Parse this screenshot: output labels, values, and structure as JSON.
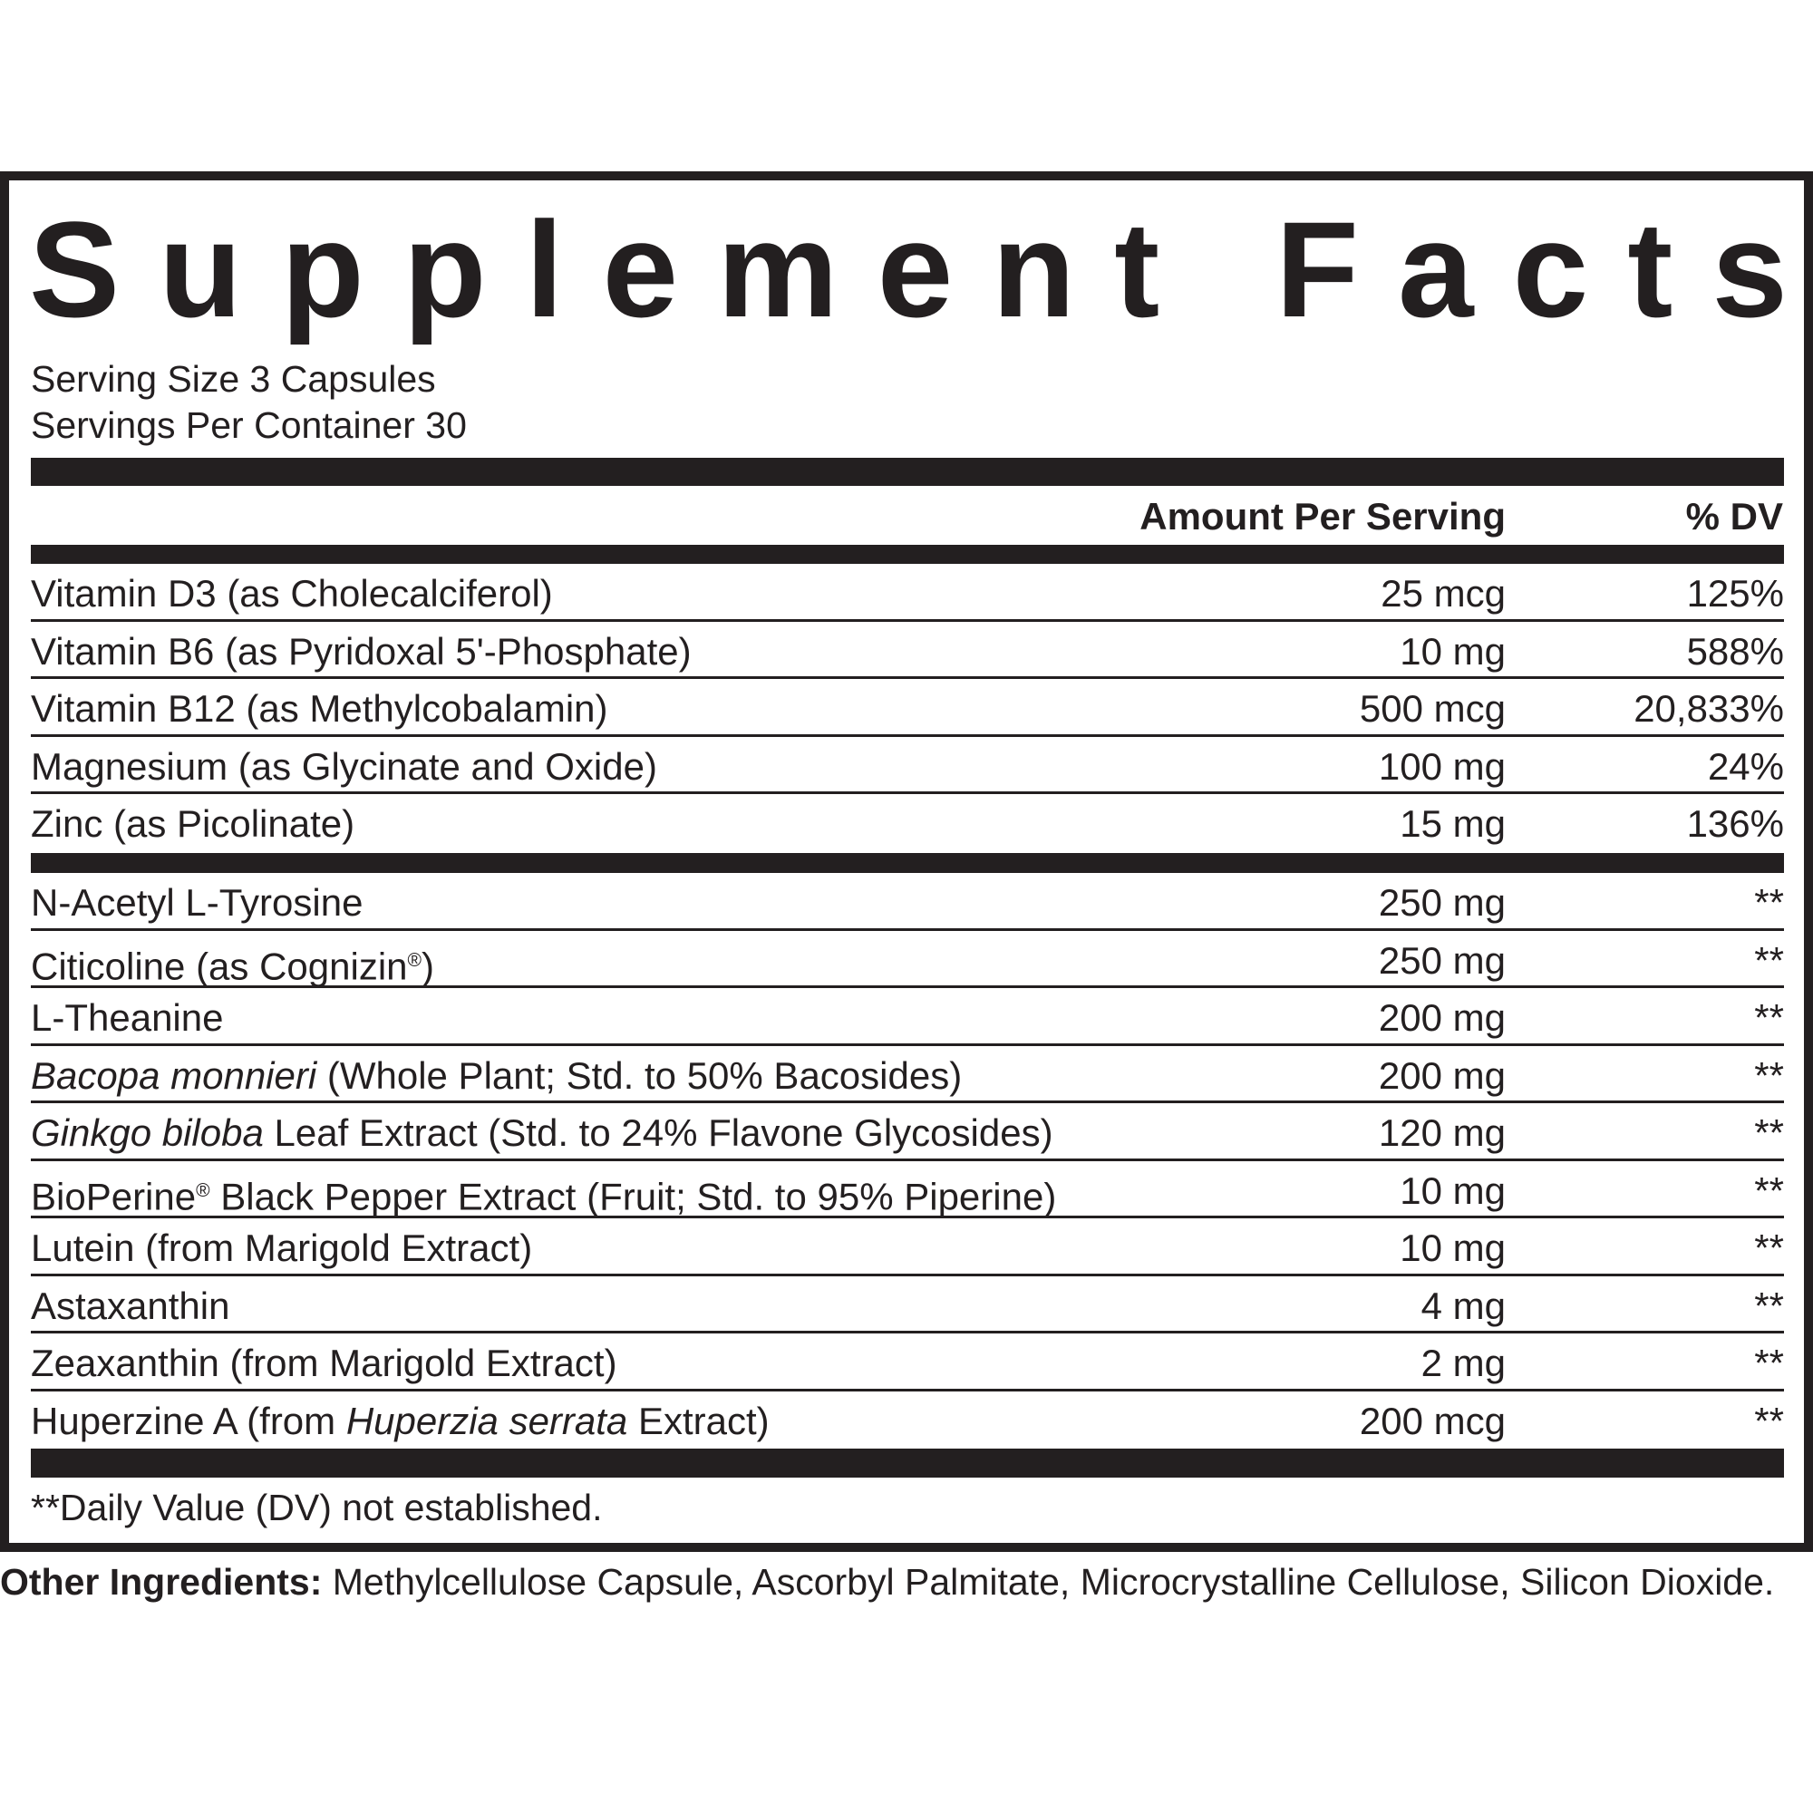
{
  "title": "Supplement Facts",
  "serving_size": "Serving Size 3 Capsules",
  "servings_per_container": "Servings Per Container 30",
  "header": {
    "amount": "Amount Per Serving",
    "dv": "% DV"
  },
  "group1": [
    {
      "name": [
        {
          "text": "Vitamin D3 (as Cholecalciferol)"
        }
      ],
      "amount": "25 mcg",
      "dv": "125%"
    },
    {
      "name": [
        {
          "text": "Vitamin B6 (as Pyridoxal 5'-Phosphate)"
        }
      ],
      "amount": "10 mg",
      "dv": "588%"
    },
    {
      "name": [
        {
          "text": "Vitamin B12 (as Methylcobalamin)"
        }
      ],
      "amount": "500 mcg",
      "dv": "20,833%"
    },
    {
      "name": [
        {
          "text": "Magnesium (as Glycinate and Oxide)"
        }
      ],
      "amount": "100 mg",
      "dv": "24%"
    },
    {
      "name": [
        {
          "text": "Zinc (as Picolinate)"
        }
      ],
      "amount": "15 mg",
      "dv": "136%"
    }
  ],
  "group2": [
    {
      "name": [
        {
          "text": "N-Acetyl L-Tyrosine"
        }
      ],
      "amount": "250 mg",
      "dv": "**"
    },
    {
      "name": [
        {
          "text": "Citicoline (as Cognizin"
        },
        {
          "text": "®",
          "sup": true
        },
        {
          "text": ")"
        }
      ],
      "amount": "250 mg",
      "dv": "**"
    },
    {
      "name": [
        {
          "text": "L-Theanine"
        }
      ],
      "amount": "200 mg",
      "dv": "**"
    },
    {
      "name": [
        {
          "text": "Bacopa monnieri",
          "italic": true
        },
        {
          "text": " (Whole Plant; Std. to 50% Bacosides)"
        }
      ],
      "amount": "200 mg",
      "dv": "**"
    },
    {
      "name": [
        {
          "text": "Ginkgo biloba",
          "italic": true
        },
        {
          "text": " Leaf Extract (Std. to 24% Flavone Glycosides)"
        }
      ],
      "amount": "120 mg",
      "dv": "**"
    },
    {
      "name": [
        {
          "text": "BioPerine"
        },
        {
          "text": "®",
          "sup": true
        },
        {
          "text": " Black Pepper Extract (Fruit; Std. to 95% Piperine)"
        }
      ],
      "amount": "10 mg",
      "dv": "**"
    },
    {
      "name": [
        {
          "text": "Lutein (from Marigold Extract)"
        }
      ],
      "amount": "10 mg",
      "dv": "**"
    },
    {
      "name": [
        {
          "text": "Astaxanthin"
        }
      ],
      "amount": "4 mg",
      "dv": "**"
    },
    {
      "name": [
        {
          "text": "Zeaxanthin (from Marigold Extract)"
        }
      ],
      "amount": "2 mg",
      "dv": "**"
    },
    {
      "name": [
        {
          "text": "Huperzine A (from "
        },
        {
          "text": "Huperzia serrata",
          "italic": true
        },
        {
          "text": " Extract)"
        }
      ],
      "amount": "200 mcg",
      "dv": "**"
    }
  ],
  "footnote": "**Daily Value (DV) not established.",
  "other_ingredients": {
    "label": "Other Ingredients:",
    "text": " Methylcellulose Capsule, Ascorbyl Palmitate, Microcrystalline Cellulose, Silicon Dioxide."
  }
}
